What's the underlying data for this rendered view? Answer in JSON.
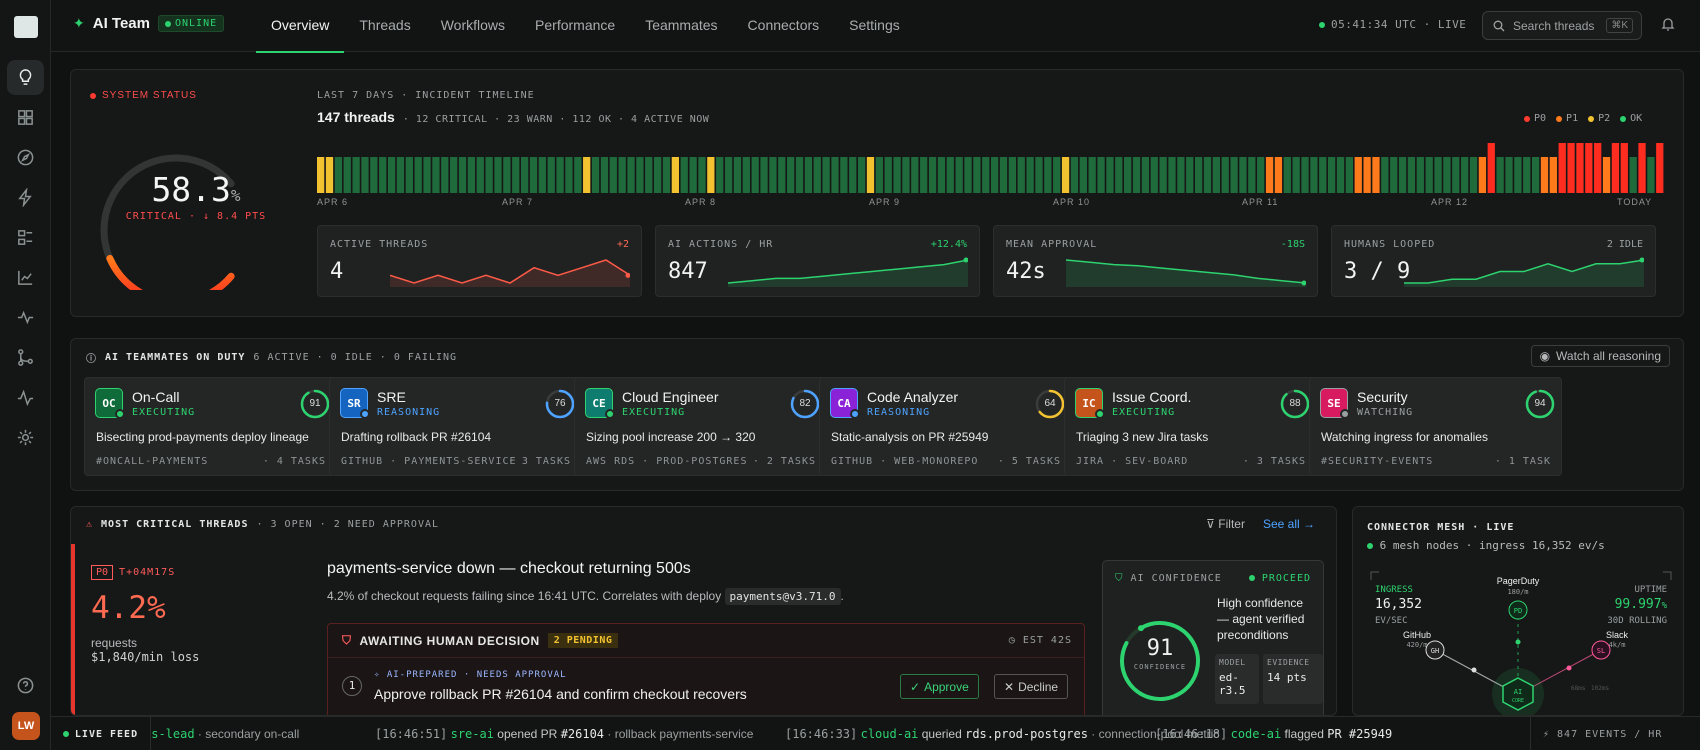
{
  "rail": {
    "avatar": "LW",
    "icons": [
      "lightbulb-icon",
      "grid-icon",
      "compass-icon",
      "bolt-icon",
      "layers-icon",
      "chart-line-icon",
      "pulse-icon",
      "branch-icon",
      "activity-icon",
      "gear-icon",
      "help-icon"
    ]
  },
  "header": {
    "app_name": "AI Team",
    "status": "ONLINE",
    "tabs": [
      "Overview",
      "Threads",
      "Workflows",
      "Performance",
      "Teammates",
      "Connectors",
      "Settings"
    ],
    "active_tab": "Overview",
    "clock": "05:41:34 UTC · LIVE",
    "search_placeholder": "Search threads",
    "search_shortcut": "⌘K"
  },
  "status": {
    "label": "SYSTEM STATUS",
    "score": "58.3",
    "score_unit": "%",
    "score_value": 58.3,
    "state": "CRITICAL · ↓ 8.4 PTS",
    "timeline_header": "LAST 7 DAYS · INCIDENT TIMELINE",
    "thread_count": "147 threads",
    "thread_meta": "· 12 CRITICAL · 23 WARN · 112 OK · 4 ACTIVE NOW",
    "legend": [
      {
        "label": "P0",
        "color": "#ff3b30"
      },
      {
        "label": "P1",
        "color": "#ff7a1a"
      },
      {
        "label": "P2",
        "color": "#f2c230"
      },
      {
        "label": "OK",
        "color": "#2dd36f"
      }
    ],
    "days": [
      "APR 6",
      "APR 7",
      "APR 8",
      "APR 9",
      "APR 10",
      "APR 11",
      "APR 12",
      "TODAY"
    ],
    "timeline": [
      "P2",
      "P2",
      "OK",
      "OK",
      "OK",
      "OK",
      "OK",
      "OK",
      "OK",
      "OK",
      "OK",
      "OK",
      "OK",
      "OK",
      "OK",
      "OK",
      "OK",
      "OK",
      "OK",
      "OK",
      "OK",
      "OK",
      "OK",
      "OK",
      "OK",
      "OK",
      "OK",
      "OK",
      "OK",
      "OK",
      "P2",
      "OK",
      "OK",
      "OK",
      "OK",
      "OK",
      "OK",
      "OK",
      "OK",
      "OK",
      "P2",
      "OK",
      "OK",
      "OK",
      "P2",
      "OK",
      "OK",
      "OK",
      "OK",
      "OK",
      "OK",
      "OK",
      "OK",
      "OK",
      "OK",
      "OK",
      "OK",
      "OK",
      "OK",
      "OK",
      "OK",
      "OK",
      "P2",
      "OK",
      "OK",
      "OK",
      "OK",
      "OK",
      "OK",
      "OK",
      "OK",
      "OK",
      "OK",
      "OK",
      "OK",
      "OK",
      "OK",
      "OK",
      "OK",
      "OK",
      "OK",
      "OK",
      "OK",
      "OK",
      "P2",
      "OK",
      "OK",
      "OK",
      "OK",
      "OK",
      "OK",
      "OK",
      "OK",
      "OK",
      "OK",
      "OK",
      "OK",
      "OK",
      "OK",
      "OK",
      "OK",
      "OK",
      "OK",
      "OK",
      "OK",
      "OK",
      "OK",
      "P1",
      "P1",
      "OK",
      "OK",
      "OK",
      "OK",
      "OK",
      "OK",
      "OK",
      "OK",
      "P1",
      "P1",
      "P1",
      "OK",
      "OK",
      "OK",
      "OK",
      "OK",
      "OK",
      "OK",
      "OK",
      "OK",
      "OK",
      "OK",
      "P1",
      "P0",
      "OK",
      "OK",
      "OK",
      "OK",
      "OK",
      "P1",
      "P1",
      "P0",
      "P0",
      "P0",
      "P0",
      "P0",
      "P1",
      "P0",
      "P0",
      "OK",
      "P0",
      "OK",
      "P0"
    ],
    "kpis": [
      {
        "label": "ACTIVE THREADS",
        "value": "4",
        "delta": "+2",
        "delta_color": "#ff6a52",
        "series": [
          3,
          2,
          3,
          2,
          3,
          2,
          4,
          3,
          4,
          5,
          3
        ],
        "color": "#ff5a47"
      },
      {
        "label": "AI ACTIONS / HR",
        "value": "847",
        "delta": "+12.4%",
        "delta_color": "#2dd36f",
        "series": [
          3,
          3.1,
          3.2,
          3.2,
          3.3,
          3.4,
          3.5,
          3.6,
          3.7,
          3.8,
          4
        ],
        "color": "#2dd36f"
      },
      {
        "label": "MEAN APPROVAL",
        "value": "42s",
        "delta": "-18S",
        "delta_color": "#2dd36f",
        "series": [
          5,
          4.8,
          4.6,
          4.5,
          4.3,
          4.1,
          3.9,
          3.7,
          3.4,
          3.2,
          3
        ],
        "color": "#2dd36f"
      },
      {
        "label": "HUMANS LOOPED",
        "value": "3 / 9",
        "delta": "2 IDLE",
        "delta_color": "#9aa0a0",
        "series": [
          1,
          1,
          1.5,
          1.5,
          2.5,
          2.5,
          3.5,
          2.5,
          3.5,
          3.5,
          4
        ],
        "color": "#2dd36f"
      }
    ]
  },
  "duty": {
    "title": "AI TEAMMATES ON DUTY",
    "meta": "6 ACTIVE · 0 IDLE · 0 FAILING",
    "watch_label": "Watch all reasoning",
    "cards": [
      {
        "initials": "OC",
        "name": "On-Call",
        "state": "EXECUTING",
        "state_color": "#2dd36f",
        "av_bg": "#0f6b3a",
        "score": "91",
        "pct": 0.91,
        "ring": "#2dd36f",
        "task": "Bisecting prod-payments deploy lineage",
        "source": "#ONCALL-PAYMENTS",
        "count": "· 4 TASKS"
      },
      {
        "initials": "SR",
        "name": "SRE",
        "state": "REASONING",
        "state_color": "#4da3ff",
        "av_bg": "#1565c0",
        "score": "76",
        "pct": 0.76,
        "ring": "#4da3ff",
        "task": "Drafting rollback PR #26104",
        "source": "GITHUB · PAYMENTS-SERVICE",
        "count": "· 3 TASKS"
      },
      {
        "initials": "CE",
        "name": "Cloud Engineer",
        "state": "EXECUTING",
        "state_color": "#2dd36f",
        "av_bg": "#0e7c6e",
        "score": "82",
        "pct": 0.82,
        "ring": "#4da3ff",
        "task": "Sizing pool increase 200 → 320",
        "source": "AWS RDS · PROD-POSTGRES",
        "count": "· 2 TASKS"
      },
      {
        "initials": "CA",
        "name": "Code Analyzer",
        "state": "REASONING",
        "state_color": "#4da3ff",
        "av_bg": "#8a22d8",
        "score": "64",
        "pct": 0.64,
        "ring": "#f2c230",
        "task": "Static-analysis on PR #25949",
        "source": "GITHUB · WEB-MONOREPO",
        "count": "· 5 TASKS"
      },
      {
        "initials": "IC",
        "name": "Issue Coord.",
        "state": "EXECUTING",
        "state_color": "#2dd36f",
        "av_bg": "#c5531c",
        "score": "88",
        "pct": 0.88,
        "ring": "#2dd36f",
        "task": "Triaging 3 new Jira tasks",
        "source": "JIRA · SEV-BOARD",
        "count": "· 3 TASKS"
      },
      {
        "initials": "SE",
        "name": "Security",
        "state": "WATCHING",
        "state_color": "#9aa0a0",
        "av_bg": "#d81b60",
        "score": "94",
        "pct": 0.94,
        "ring": "#2dd36f",
        "task": "Watching ingress for anomalies",
        "source": "#SECURITY-EVENTS",
        "count": "· 1 TASK"
      }
    ]
  },
  "critical": {
    "title": "MOST CRITICAL THREADS",
    "meta": "· 3 OPEN · 2 NEED APPROVAL",
    "filter_label": "Filter",
    "see_all": "See all →",
    "priority": "P0",
    "elapsed": "T+04M17S",
    "impact": "4.2%",
    "impact_unit": "requests",
    "loss": "$1,840/min loss",
    "thread_title": "payments-service down — checkout returning 500s",
    "thread_desc": "4.2% of checkout requests failing since 16:41 UTC. Correlates with deploy",
    "deploy": "payments@v3.71.0",
    "thread_desc_end": ".",
    "await_title": "AWAITING HUMAN DECISION",
    "await_badge": "2 PENDING",
    "await_est": "EST 42S",
    "step": "1",
    "ai_prepared": "✧ AI-PREPARED",
    "needs_approval": "· NEEDS APPROVAL",
    "action": "Approve rollback PR #26104 and confirm checkout recovers",
    "approve": "Approve",
    "decline": "Decline",
    "confidence_label": "AI CONFIDENCE",
    "proceed": "PROCEED",
    "confidence": "91",
    "confidence_value": 0.91,
    "confidence_sub": "CONFIDENCE",
    "confidence_text": "High confidence — agent verified preconditions",
    "model_label": "MODEL",
    "model_value": "ed-r3.5",
    "evidence_label": "EVIDENCE",
    "evidence_value": "14 pts"
  },
  "mesh": {
    "title": "CONNECTOR MESH · LIVE",
    "sub": "6 mesh nodes · ingress 16,352 ev/s",
    "ingress_label": "INGRESS",
    "ingress_value": "16,352",
    "ingress_unit": "EV/SEC",
    "uptime_label": "UPTIME",
    "uptime_value": "99.997",
    "uptime_unit": "%",
    "uptime_sub": "30D ROLLING",
    "nodes": [
      {
        "name": "PagerDuty",
        "rate": "180/m",
        "code": "PD"
      },
      {
        "name": "GitHub",
        "rate": "420/m",
        "code": "GH"
      },
      {
        "name": "Slack",
        "rate": "4k/m",
        "code": "SL"
      }
    ],
    "core": "AI",
    "core_sub": "CORE",
    "lat_a": "68ms",
    "lat_b": "102ms"
  },
  "ticker": {
    "label": "LIVE FEED",
    "events": [
      {
        "time": "",
        "who": "ts-lead",
        "verb": "",
        "obj": "",
        "tail": "· secondary on-call"
      },
      {
        "time": "[16:46:51]",
        "who": "sre-ai",
        "verb": "opened PR",
        "obj": "#26104",
        "tail": "· rollback payments-service"
      },
      {
        "time": "[16:46:33]",
        "who": "cloud-ai",
        "verb": "queried",
        "obj": "rds.prod-postgres",
        "tail": "· connection-pool metric"
      },
      {
        "time": "[16:46:18]",
        "who": "code-ai",
        "verb": "flagged",
        "obj": "PR #25949",
        "tail": ""
      }
    ],
    "rate": "⚡ 847 EVENTS / HR"
  }
}
